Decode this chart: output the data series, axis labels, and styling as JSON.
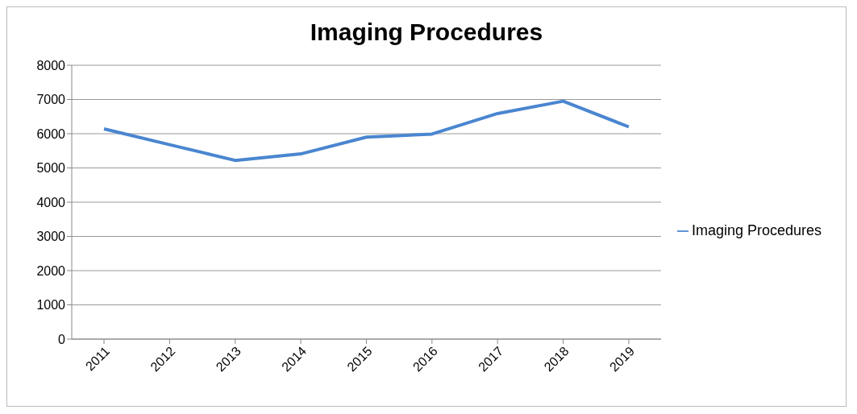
{
  "chart_data": {
    "type": "line",
    "title": "Imaging Procedures",
    "categories": [
      "2011",
      "2012",
      "2013",
      "2014",
      "2015",
      "2016",
      "2017",
      "2018",
      "2019"
    ],
    "series": [
      {
        "name": "Imaging Procedures",
        "color": "#4a86d0",
        "values": [
          6140,
          5680,
          5220,
          5410,
          5900,
          5990,
          6590,
          6950,
          6200
        ]
      }
    ],
    "ylim": [
      0,
      8000
    ],
    "yticks": [
      0,
      1000,
      2000,
      3000,
      4000,
      5000,
      6000,
      7000,
      8000
    ],
    "grid": "y",
    "legend": "right",
    "marker": "none",
    "line_style": "solid"
  }
}
